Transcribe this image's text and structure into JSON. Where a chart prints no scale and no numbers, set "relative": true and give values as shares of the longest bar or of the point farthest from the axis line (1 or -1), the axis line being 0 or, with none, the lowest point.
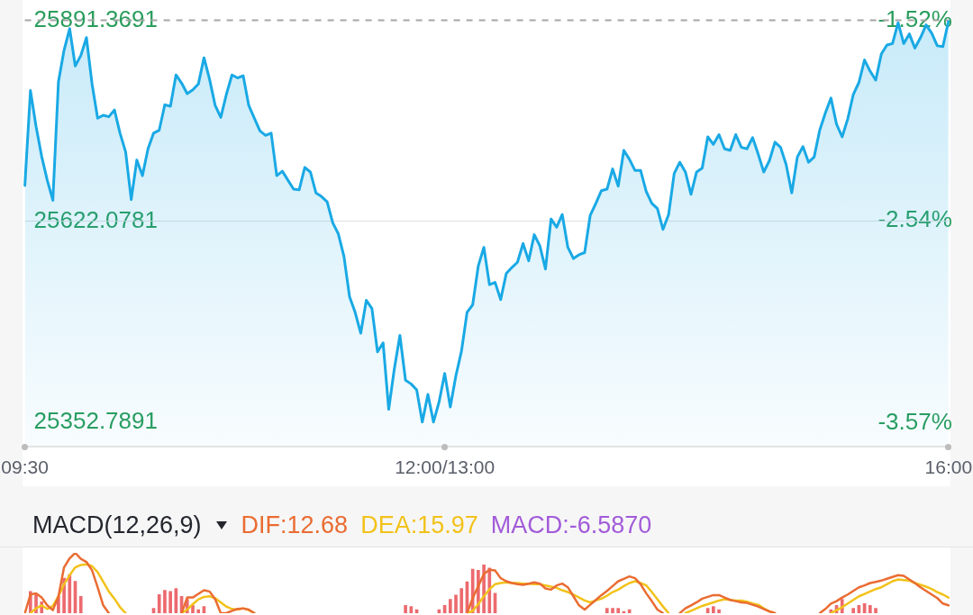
{
  "chart_data": [
    {
      "type": "area",
      "color": "#19a9e5",
      "marker": "none",
      "categories": [
        "09:30",
        null,
        null,
        null,
        null,
        null,
        null,
        null,
        null,
        null,
        null,
        null,
        null,
        null,
        null,
        null,
        null,
        null,
        null,
        null,
        null,
        null,
        null,
        null,
        null,
        null,
        null,
        null,
        null,
        null,
        null,
        null,
        null,
        null,
        null,
        null,
        null,
        null,
        null,
        null,
        null,
        null,
        null,
        null,
        null,
        null,
        null,
        null,
        null,
        null,
        null,
        null,
        null,
        null,
        null,
        null,
        null,
        null,
        null,
        null,
        null,
        null,
        null,
        null,
        null,
        null,
        null,
        null,
        null,
        null,
        null,
        null,
        null,
        null,
        null,
        "12:00/13:00",
        null,
        null,
        null,
        null,
        null,
        null,
        null,
        null,
        null,
        null,
        null,
        null,
        null,
        null,
        null,
        null,
        null,
        null,
        null,
        null,
        null,
        null,
        null,
        null,
        null,
        null,
        null,
        null,
        null,
        null,
        null,
        null,
        null,
        null,
        null,
        null,
        null,
        null,
        null,
        null,
        null,
        null,
        null,
        null,
        null,
        null,
        null,
        null,
        null,
        null,
        null,
        null,
        null,
        null,
        null,
        null,
        null,
        null,
        null,
        null,
        null,
        null,
        null,
        null,
        null,
        null,
        null,
        null,
        null,
        null,
        null,
        null,
        null,
        null,
        null,
        null,
        null,
        null,
        null,
        null,
        null,
        null,
        null,
        null,
        null,
        null,
        null,
        null,
        null,
        "16:00"
      ],
      "values": [
        25670,
        25797,
        25749,
        25709,
        25677,
        25650,
        25809,
        25851,
        25880,
        25830,
        25844,
        25868,
        25806,
        25760,
        25764,
        25762,
        25771,
        25740,
        25715,
        25651,
        25704,
        25683,
        25719,
        25740,
        25744,
        25778,
        25776,
        25818,
        25807,
        25793,
        25798,
        25806,
        25841,
        25812,
        25777,
        25761,
        25792,
        25818,
        25814,
        25817,
        25777,
        25760,
        25743,
        25737,
        25740,
        25683,
        25689,
        25677,
        25665,
        25664,
        25694,
        25688,
        25660,
        25655,
        25648,
        25620,
        25605,
        25575,
        25521,
        25500,
        25472,
        25516,
        25505,
        25447,
        25459,
        25370,
        25424,
        25469,
        25409,
        25404,
        25396,
        25353,
        25390,
        25353,
        25380,
        25418,
        25373,
        25415,
        25448,
        25500,
        25510,
        25562,
        25587,
        25537,
        25540,
        25517,
        25552,
        25560,
        25567,
        25592,
        25569,
        25604,
        25589,
        25558,
        25625,
        25614,
        25631,
        25587,
        25572,
        25577,
        25580,
        25630,
        25646,
        25663,
        25665,
        25692,
        25669,
        25717,
        25705,
        25690,
        25690,
        25662,
        25646,
        25639,
        25611,
        25631,
        25686,
        25701,
        25688,
        25658,
        25688,
        25693,
        25735,
        25725,
        25738,
        25719,
        25717,
        25738,
        25721,
        25719,
        25734,
        25712,
        25688,
        25703,
        25728,
        25721,
        25698,
        25660,
        25708,
        25722,
        25701,
        25708,
        25744,
        25767,
        25787,
        25752,
        25735,
        25759,
        25792,
        25808,
        25838,
        25823,
        25811,
        25846,
        25858,
        25860,
        25888,
        25860,
        25873,
        25854,
        25868,
        25885,
        25874,
        25857,
        25856,
        25890
      ],
      "ylim": [
        25320,
        25891.3691
      ],
      "yticks": [
        25352.7891,
        25622.0781,
        25891.3691
      ],
      "y2lim": [
        -3.69,
        -1.52
      ],
      "y2ticks": [
        {
          "value": -3.57,
          "label": "-3.57%"
        },
        {
          "value": -2.54,
          "label": "-2.54%"
        },
        {
          "value": -1.52,
          "label": "-1.52%"
        }
      ],
      "ref_lines": [
        {
          "axis": "y",
          "value": 25891.3691,
          "line_style": "dashed",
          "color": "#a6a6a6"
        },
        {
          "axis": "y",
          "value": 25622.0781,
          "line_style": "solid",
          "color": "#dedede"
        }
      ]
    },
    {
      "type": "line",
      "title": "MACD(12,26,9)",
      "relative": true,
      "legend": "top left",
      "tick_labels": false,
      "marker": "none",
      "annotations": [
        "MACD:-6.5870"
      ],
      "categories": [
        null,
        null,
        null,
        null,
        null,
        null,
        null,
        null,
        null,
        null,
        null,
        null,
        null,
        null,
        null,
        null,
        null,
        null,
        null,
        null,
        null,
        null,
        null,
        null,
        null,
        null,
        null,
        null,
        null,
        null,
        null,
        null,
        null,
        null,
        null,
        null,
        null,
        null,
        null,
        null,
        null,
        null,
        null,
        null,
        null,
        null,
        null,
        null,
        null,
        null,
        null,
        null,
        null,
        null,
        null,
        null,
        null,
        null,
        null,
        null,
        null,
        null,
        null,
        null,
        null,
        null,
        null,
        null,
        null,
        null,
        null,
        null,
        null,
        null,
        null,
        null,
        null,
        null,
        null,
        null,
        null,
        null,
        null,
        null,
        null,
        null,
        null,
        null,
        null,
        null,
        null,
        null,
        null,
        null,
        null,
        null,
        null,
        null,
        null,
        null,
        null,
        null,
        null,
        null,
        null,
        null,
        null,
        null,
        null,
        null,
        null,
        null,
        null,
        null,
        null,
        null,
        null,
        null,
        null,
        null,
        null,
        null,
        null,
        null,
        null,
        null,
        null,
        null,
        null,
        null,
        null,
        null,
        null,
        null,
        null,
        null,
        null,
        null,
        null,
        null,
        null,
        null,
        null,
        null,
        null,
        null,
        null,
        null,
        null,
        null,
        null,
        null,
        null,
        null,
        null,
        null,
        null,
        null,
        null,
        null,
        null,
        null,
        null,
        null,
        null,
        null
      ],
      "series": [
        {
          "name": "DIF:12.68",
          "color": "#ea6c32",
          "values": [
            0,
            0.31,
            0.33,
            0.26,
            0.13,
            0.05,
            0.28,
            0.76,
            0.91,
            1,
            0.9,
            0.85,
            0.71,
            0.43,
            0.13,
            0,
            null,
            null,
            null,
            null,
            null,
            null,
            null,
            null,
            null,
            null,
            null,
            null,
            0,
            0.26,
            0.26,
            0.32,
            0.38,
            0.36,
            0.23,
            0,
            0,
            0.04,
            0.07,
            0.08,
            0.06,
            0,
            null,
            null,
            null,
            null,
            null,
            null,
            null,
            null,
            null,
            null,
            null,
            null,
            null,
            null,
            null,
            null,
            null,
            null,
            null,
            null,
            null,
            null,
            null,
            null,
            null,
            null,
            null,
            null,
            null,
            null,
            null,
            null,
            null,
            null,
            null,
            null,
            null,
            0,
            0.25,
            0.45,
            0.65,
            0.72,
            0.71,
            0.58,
            0.53,
            0.5,
            0.48,
            0.47,
            0.49,
            0.51,
            0.49,
            0.41,
            0.39,
            0.46,
            0.49,
            0.43,
            0.28,
            0.13,
            0.06,
            0.14,
            0.22,
            0.3,
            0.37,
            0.45,
            0.53,
            0.57,
            0.61,
            0.58,
            0.48,
            0.33,
            0.2,
            0.06,
            0,
            null,
            null,
            0,
            0.08,
            0.13,
            0.18,
            0.24,
            0.27,
            0.3,
            0.3,
            0.26,
            0.22,
            0.2,
            0.18,
            0.17,
            0.14,
            0.11,
            0.07,
            0.03,
            0,
            null,
            null,
            null,
            null,
            null,
            null,
            null,
            0,
            0.07,
            0.16,
            0.2,
            0.26,
            0.31,
            0.37,
            0.43,
            0.46,
            0.5,
            0.52,
            0.54,
            0.57,
            0.6,
            0.63,
            0.62,
            0.56,
            0.5,
            0.43,
            0.37,
            0.31,
            0.25,
            0.16,
            0.13
          ]
        },
        {
          "name": "DEA:15.97",
          "color": "#f2c21a",
          "values": [
            null,
            0,
            0.08,
            0.13,
            0.07,
            0.12,
            0.28,
            0.48,
            0.63,
            0.76,
            0.8,
            0.81,
            0.78,
            0.68,
            0.52,
            0.36,
            0.24,
            0.1,
            0,
            null,
            null,
            null,
            null,
            null,
            null,
            null,
            null,
            null,
            0,
            0.06,
            0.15,
            0.23,
            0.27,
            0.28,
            0.25,
            0.18,
            0.11,
            0.07,
            0.06,
            0.08,
            0.05,
            0,
            null,
            null,
            null,
            null,
            null,
            null,
            null,
            null,
            null,
            null,
            null,
            null,
            null,
            null,
            null,
            null,
            null,
            null,
            null,
            null,
            null,
            null,
            null,
            null,
            null,
            null,
            null,
            null,
            null,
            null,
            null,
            null,
            null,
            null,
            null,
            null,
            null,
            0,
            0.04,
            0.15,
            0.28,
            0.4,
            0.48,
            0.5,
            0.51,
            0.5,
            0.5,
            0.49,
            0.49,
            0.48,
            0.48,
            0.46,
            0.44,
            0.42,
            0.38,
            0.35,
            0.31,
            0.26,
            0.21,
            0.18,
            0.21,
            0.24,
            0.29,
            0.35,
            0.39,
            0.45,
            0.5,
            0.53,
            0.5,
            0.46,
            0.35,
            0.23,
            0.11,
            0,
            null,
            null,
            0,
            0.04,
            0.08,
            0.12,
            0.15,
            0.18,
            0.21,
            0.23,
            0.22,
            0.21,
            0.21,
            0.19,
            0.16,
            0.14,
            0.08,
            0.03,
            0,
            null,
            null,
            null,
            null,
            null,
            null,
            null,
            null,
            null,
            0,
            0.05,
            0.1,
            0.16,
            0.22,
            0.28,
            0.32,
            0.36,
            0.4,
            0.43,
            0.48,
            0.53,
            0.56,
            0.55,
            0.54,
            0.5,
            0.47,
            0.44,
            0.4,
            0.35,
            0.31,
            0.26
          ]
        },
        {
          "type": "bar",
          "color": "#ec6a6e",
          "values": [
            null,
            0.36,
            0.32,
            0.19,
            null,
            null,
            0.28,
            0.58,
            0.64,
            0.53,
            0.28,
            null,
            null,
            null,
            null,
            null,
            null,
            null,
            null,
            null,
            null,
            null,
            null,
            0.08,
            0.31,
            0.38,
            0.36,
            0.41,
            0.28,
            0.23,
            0.13,
            0.06,
            0.11,
            null,
            null,
            null,
            null,
            null,
            null,
            null,
            null,
            null,
            null,
            null,
            null,
            null,
            null,
            null,
            null,
            null,
            null,
            null,
            null,
            null,
            null,
            null,
            null,
            null,
            null,
            null,
            null,
            null,
            null,
            null,
            null,
            null,
            null,
            null,
            0.13,
            0.11,
            0.06,
            null,
            null,
            null,
            0.06,
            0.13,
            0.23,
            0.3,
            0.41,
            0.52,
            0.73,
            0.71,
            0.8,
            0.75,
            0.33,
            null,
            null,
            null,
            null,
            null,
            null,
            null,
            null,
            null,
            null,
            null,
            null,
            null,
            null,
            null,
            null,
            null,
            null,
            null,
            0.08,
            0.08,
            0.08,
            0.03,
            0.06,
            null,
            null,
            null,
            null,
            null,
            null,
            null,
            null,
            null,
            null,
            null,
            null,
            null,
            0.08,
            0.11,
            0.06,
            null,
            null,
            null,
            null,
            null,
            null,
            null,
            null,
            null,
            null,
            null,
            null,
            null,
            null,
            null,
            null,
            null,
            null,
            null,
            0.06,
            0.13,
            0.23,
            null,
            0.08,
            0.13,
            0.16,
            0.13,
            0.08,
            null,
            null,
            null,
            null,
            null,
            null,
            null,
            null,
            null,
            null,
            null,
            null,
            null
          ]
        }
      ]
    }
  ]
}
